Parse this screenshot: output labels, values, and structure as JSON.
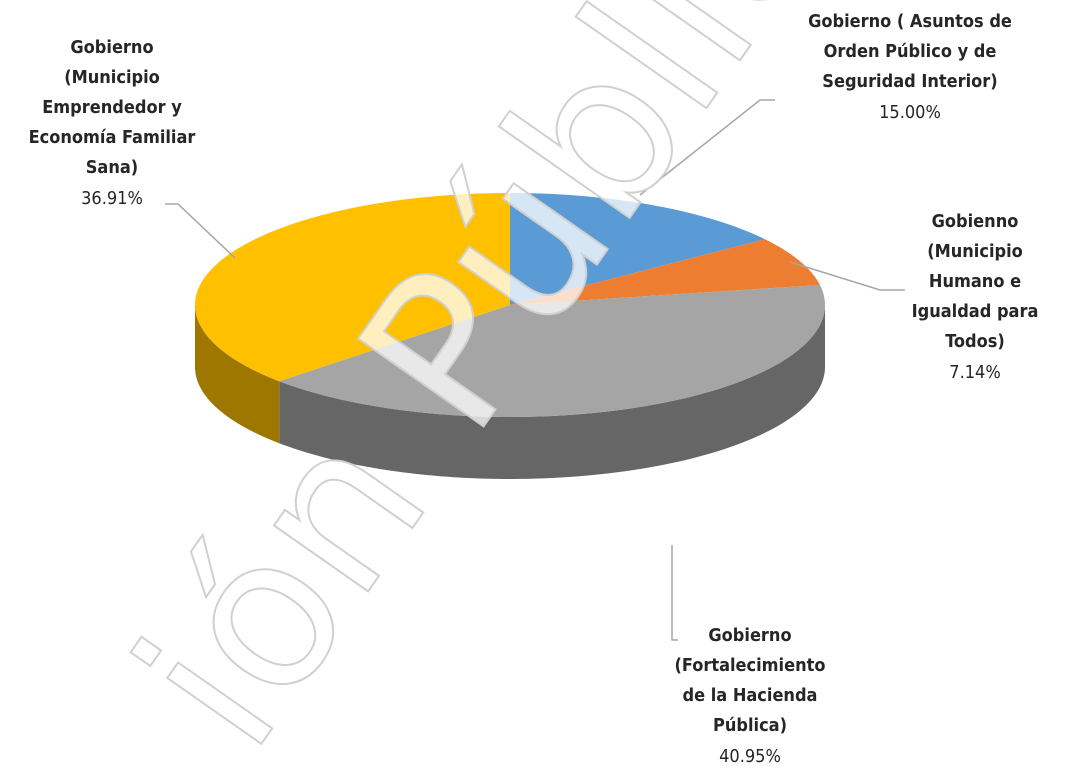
{
  "chart_data": {
    "type": "pie3d",
    "categories": [
      [
        "Gobierno  ( Asuntos de",
        "Orden Público y de",
        "Seguridad Interior)"
      ],
      [
        "Gobienno",
        "(Municipio",
        "Humano e",
        "Igualdad para",
        "Todos)"
      ],
      [
        "Gobierno",
        "(Fortalecimiento",
        "de la Hacienda",
        "Pública)"
      ],
      [
        "Gobierno",
        "(Municipio",
        "Emprendedor y",
        "Economía Familiar",
        "Sana)"
      ]
    ],
    "values": [
      15.0,
      7.14,
      40.95,
      36.91
    ],
    "value_labels": [
      "15.00%",
      "7.14%",
      "40.95%",
      "36.91%"
    ],
    "colors": [
      "#5b9bd5",
      "#ed7d31",
      "#a5a5a5",
      "#ffc000"
    ],
    "watermark": "ión Pública"
  }
}
